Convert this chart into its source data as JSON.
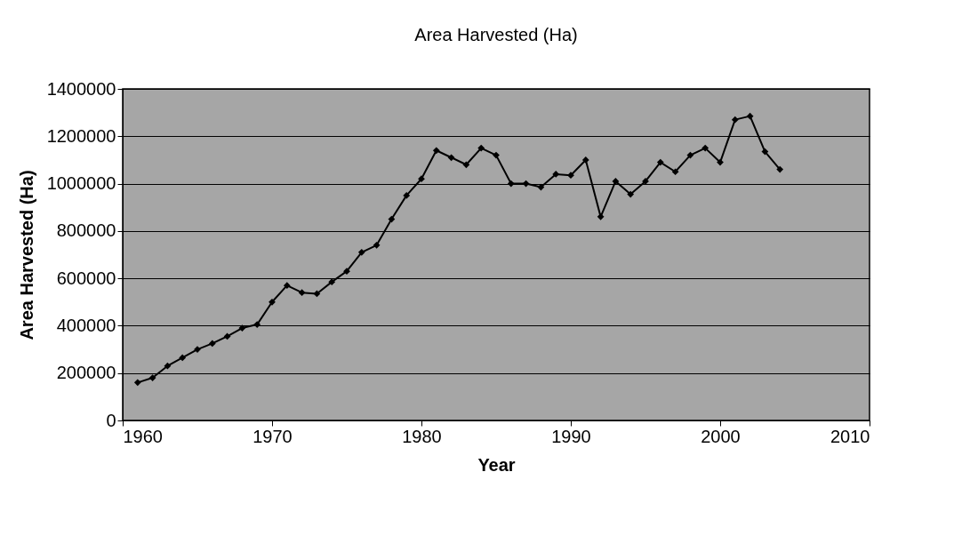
{
  "chart_data": {
    "type": "line",
    "title": "Area Harvested (Ha)",
    "xlabel": "Year",
    "ylabel": "Area Harvested (Ha)",
    "x": [
      1961,
      1962,
      1963,
      1964,
      1965,
      1966,
      1967,
      1968,
      1969,
      1970,
      1971,
      1972,
      1973,
      1974,
      1975,
      1976,
      1977,
      1978,
      1979,
      1980,
      1981,
      1982,
      1983,
      1984,
      1985,
      1986,
      1987,
      1988,
      1989,
      1990,
      1991,
      1992,
      1993,
      1994,
      1995,
      1996,
      1997,
      1998,
      1999,
      2000,
      2001,
      2002,
      2003,
      2004
    ],
    "series": [
      {
        "color": "#000000",
        "values": [
          160000,
          180000,
          230000,
          265000,
          300000,
          325000,
          355000,
          390000,
          405000,
          500000,
          570000,
          540000,
          535000,
          585000,
          630000,
          710000,
          740000,
          850000,
          950000,
          1020000,
          1140000,
          1110000,
          1080000,
          1150000,
          1120000,
          1000000,
          1000000,
          985000,
          1040000,
          1035000,
          1100000,
          860000,
          1010000,
          955000,
          1010000,
          1090000,
          1050000,
          1120000,
          1150000,
          1090000,
          1270000,
          1285000,
          1135000,
          1060000
        ]
      }
    ],
    "xlim": [
      1960,
      2010
    ],
    "xticks": [
      1960,
      1970,
      1980,
      1990,
      2000,
      2010
    ],
    "ylim": [
      0,
      1400000
    ],
    "yticks": [
      0,
      200000,
      400000,
      600000,
      800000,
      1000000,
      1200000,
      1400000
    ],
    "grid": "y",
    "marker": "diamond",
    "line_style": "solid"
  }
}
